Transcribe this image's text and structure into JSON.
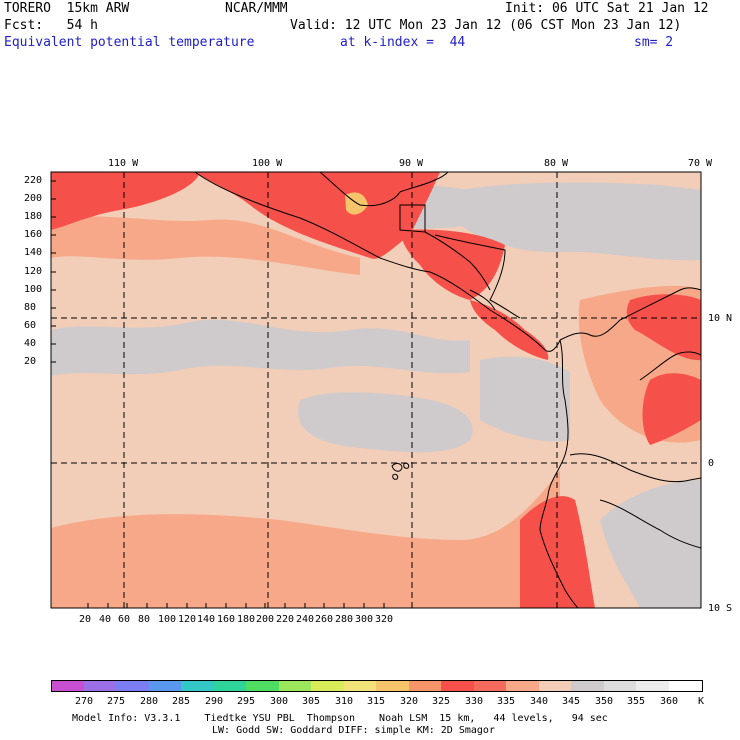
{
  "header": {
    "model_name": "TORERO  15km ARW",
    "org": "NCAR/MMM",
    "init": "Init: 06 UTC Sat 21 Jan 12",
    "fcst": "Fcst:   54 h",
    "valid": "Valid: 12 UTC Mon 23 Jan 12 (06 CST Mon 23 Jan 12)",
    "field": "Equivalent potential temperature",
    "level": "at k-index =  44",
    "smooth": "sm= 2"
  },
  "axes": {
    "lon_labels": [
      "110 W",
      "100 W",
      "90 W",
      "80 W",
      "70 W"
    ],
    "lat_labels": [
      "10 N",
      "0",
      "10 S"
    ],
    "y_ticks": [
      "220",
      "200",
      "180",
      "160",
      "140",
      "120",
      "100",
      "80",
      "60",
      "40",
      "20"
    ],
    "x_ticks": [
      "20",
      "40",
      "60",
      "80",
      "100",
      "120",
      "140",
      "160",
      "180",
      "200",
      "220",
      "240",
      "260",
      "280",
      "300",
      "320"
    ]
  },
  "colorbar": {
    "unit": "K",
    "levels": [
      "270",
      "275",
      "280",
      "285",
      "290",
      "295",
      "300",
      "305",
      "310",
      "315",
      "320",
      "325",
      "330",
      "335",
      "340",
      "345",
      "350",
      "355",
      "360"
    ],
    "colors": [
      "#c84fd0",
      "#9b6fe6",
      "#7a7ef2",
      "#5a98f0",
      "#33c7c7",
      "#2fd49a",
      "#4fdc62",
      "#9be65a",
      "#d8ec5a",
      "#f2e27a",
      "#f6c46a",
      "#f6946a",
      "#f6504a",
      "#f46a5c",
      "#f6a888",
      "#f2cdb8",
      "#cfcacb",
      "#dcdcdc",
      "#ececec",
      "#ffffff"
    ]
  },
  "map_colors": {
    "c320": "#f6c46a",
    "c325": "#f6946a",
    "c330": "#f6504a",
    "c335": "#f46a5c",
    "c340": "#f6a888",
    "c345": "#f2cdb8",
    "c350": "#cfcacb",
    "c355": "#dcdcdc"
  },
  "footer": {
    "line1": "Model Info: V3.3.1    Tiedtke YSU PBL  Thompson    Noah LSM  15 km,   44 levels,   94 sec",
    "line2": "LW: Godd SW: Goddard DIFF: simple KM: 2D Smagor"
  }
}
